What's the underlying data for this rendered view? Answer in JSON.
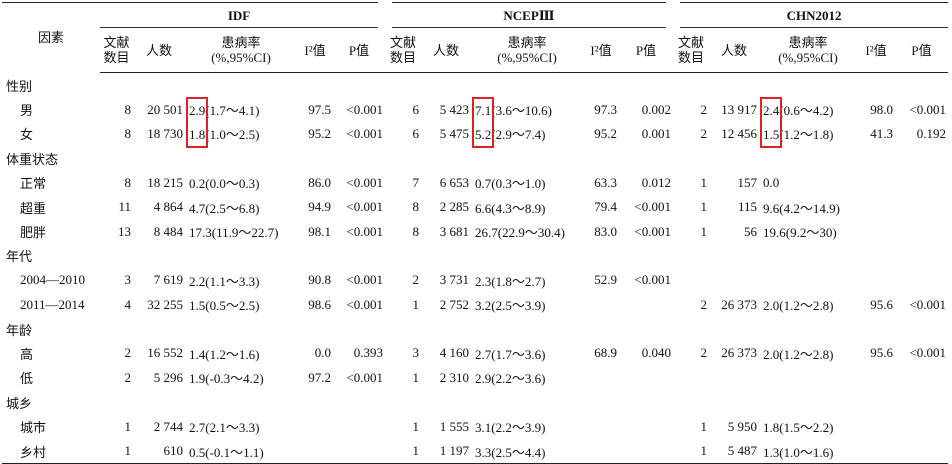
{
  "header": {
    "factor": "因素",
    "groups": [
      "IDF",
      "NCEPⅢ",
      "CHN2012"
    ],
    "columns": [
      [
        "文献数目"
      ],
      [
        "人数"
      ],
      [
        "患病率",
        "(%,95%CI)"
      ],
      [
        "I²值"
      ],
      [
        "P值"
      ]
    ]
  },
  "sections": [
    {
      "label": "性别",
      "highlight_estimates": true,
      "rows": [
        {
          "label": "男",
          "cells": [
            "8",
            "20 501",
            {
              "est": "2.9",
              "ci": "(1.7～4.1)"
            },
            "97.5",
            "<0.001",
            "6",
            "5 423",
            {
              "est": "7.1",
              "ci": "(3.6～10.6)"
            },
            "97.3",
            "0.002",
            "2",
            "13 917",
            {
              "est": "2.4",
              "ci": "(0.6～4.2)"
            },
            "98.0",
            "<0.001"
          ]
        },
        {
          "label": "女",
          "cells": [
            "8",
            "18 730",
            {
              "est": "1.8",
              "ci": "(1.0～2.5)"
            },
            "95.2",
            "<0.001",
            "6",
            "5 475",
            {
              "est": "5.2",
              "ci": "(2.9～7.4)"
            },
            "95.2",
            "0.001",
            "2",
            "12 456",
            {
              "est": "1.5",
              "ci": "(1.2～1.8)"
            },
            "41.3",
            "0.192"
          ]
        }
      ]
    },
    {
      "label": "体重状态",
      "rows": [
        {
          "label": "正常",
          "cells": [
            "8",
            "18 215",
            {
              "est": "0.2",
              "ci": "(0.0～0.3)"
            },
            "86.0",
            "<0.001",
            "7",
            "6 653",
            {
              "est": "0.7",
              "ci": "(0.3～1.0)"
            },
            "63.3",
            "0.012",
            "1",
            "157",
            {
              "est": "0.0"
            },
            null,
            null
          ]
        },
        {
          "label": "超重",
          "cells": [
            "11",
            "4 864",
            {
              "est": "4.7",
              "ci": "(2.5～6.8)"
            },
            "94.9",
            "<0.001",
            "8",
            "2 285",
            {
              "est": "6.6",
              "ci": "(4.3～8.9)"
            },
            "79.4",
            "<0.001",
            "1",
            "115",
            {
              "est": "9.6",
              "ci": "(4.2～14.9)"
            },
            null,
            null
          ]
        },
        {
          "label": "肥胖",
          "cells": [
            "13",
            "8 484",
            {
              "est": "17.3",
              "ci": "(11.9～22.7)"
            },
            "98.1",
            "<0.001",
            "8",
            "3 681",
            {
              "est": "26.7",
              "ci": "(22.9～30.4)"
            },
            "83.0",
            "<0.001",
            "1",
            "56",
            {
              "est": "19.6",
              "ci": "(9.2～30)"
            },
            null,
            null
          ]
        }
      ]
    },
    {
      "label": "年代",
      "rows": [
        {
          "label": "2004—2010",
          "cells": [
            "3",
            "7 619",
            {
              "est": "2.2",
              "ci": "(1.1～3.3)"
            },
            "90.8",
            "<0.001",
            "2",
            "3 731",
            {
              "est": "2.3",
              "ci": "(1.8～2.7)"
            },
            "52.9",
            "<0.001",
            null,
            null,
            null,
            null,
            null
          ]
        },
        {
          "label": "2011—2014",
          "cells": [
            "4",
            "32 255",
            {
              "est": "1.5",
              "ci": "(0.5～2.5)"
            },
            "98.6",
            "<0.001",
            "1",
            "2 752",
            {
              "est": "3.2",
              "ci": "(2.5～3.9)"
            },
            null,
            null,
            "2",
            "26 373",
            {
              "est": "2.0",
              "ci": "(1.2～2.8)"
            },
            "95.6",
            "<0.001"
          ]
        }
      ]
    },
    {
      "label": "年龄",
      "rows": [
        {
          "label": "高",
          "cells": [
            "2",
            "16 552",
            {
              "est": "1.4",
              "ci": "(1.2～1.6)"
            },
            "0.0",
            "0.393",
            "3",
            "4 160",
            {
              "est": "2.7",
              "ci": "(1.7～3.6)"
            },
            "68.9",
            "0.040",
            "2",
            "26 373",
            {
              "est": "2.0",
              "ci": "(1.2～2.8)"
            },
            "95.6",
            "<0.001"
          ]
        },
        {
          "label": "低",
          "cells": [
            "2",
            "5 296",
            {
              "est": "1.9",
              "ci": "(-0.3～4.2)"
            },
            "97.2",
            "<0.001",
            "1",
            "2 310",
            {
              "est": "2.9",
              "ci": "(2.2～3.6)"
            },
            null,
            null,
            null,
            null,
            null,
            null,
            null
          ]
        }
      ]
    },
    {
      "label": "城乡",
      "rows": [
        {
          "label": "城市",
          "cells": [
            "1",
            "2 744",
            {
              "est": "2.7",
              "ci": "(2.1～3.3)"
            },
            null,
            null,
            "1",
            "1 555",
            {
              "est": "3.1",
              "ci": "(2.2～3.9)"
            },
            null,
            null,
            "1",
            "5 950",
            {
              "est": "1.8",
              "ci": "(1.5～2.2)"
            },
            null,
            null
          ]
        },
        {
          "label": "乡村",
          "cells": [
            "1",
            "610",
            {
              "est": "0.5",
              "ci": "(-0.1～1.1)"
            },
            null,
            null,
            "1",
            "1 197",
            {
              "est": "3.3",
              "ci": "(2.5～4.4)"
            },
            null,
            null,
            "1",
            "5 487",
            {
              "est": "1.3",
              "ci": "(1.0～1.6)"
            },
            null,
            null
          ]
        }
      ]
    }
  ]
}
